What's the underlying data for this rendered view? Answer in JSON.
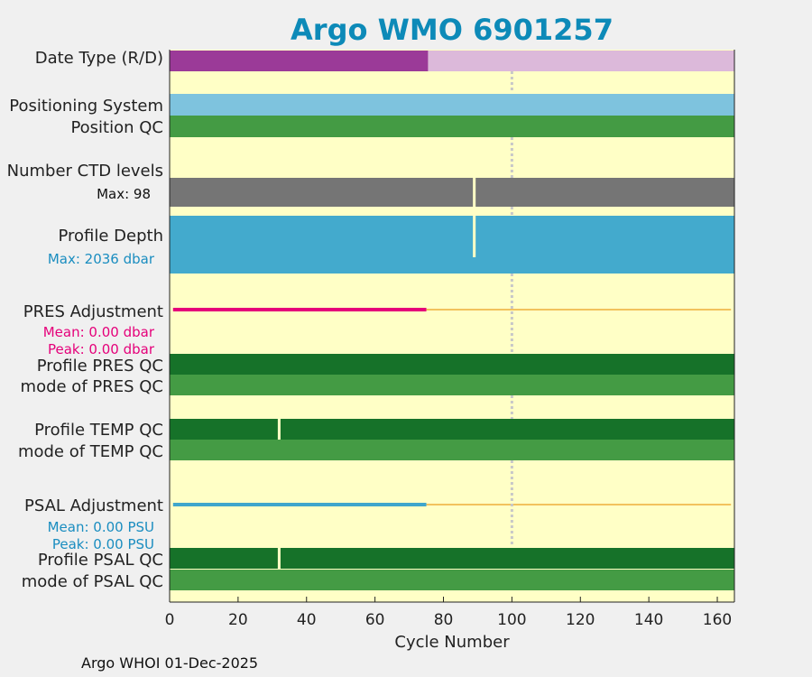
{
  "chart_data": {
    "type": "timeline",
    "title": "Argo WMO 6901257",
    "xlabel": "Cycle Number",
    "xlim": [
      0,
      165
    ],
    "xticks": [
      0,
      20,
      40,
      60,
      80,
      100,
      120,
      140,
      160
    ],
    "reference_cycle": 100,
    "panels": [
      {
        "id": "date_type",
        "labels": [
          "Date Type (R/D)"
        ],
        "segments": [
          {
            "from": 0,
            "to": 75.5,
            "color": "#9b3a98"
          },
          {
            "from": 75.5,
            "to": 165,
            "color": "#dcb9da"
          }
        ]
      },
      {
        "id": "positioning_system",
        "labels": [
          "Positioning System"
        ],
        "segments": [
          {
            "from": 0,
            "to": 165,
            "color": "#7ec3de"
          }
        ]
      },
      {
        "id": "position_qc",
        "labels": [
          "Position QC"
        ],
        "segments": [
          {
            "from": 0,
            "to": 165,
            "color": "#449b44"
          }
        ]
      },
      {
        "id": "ctd_levels",
        "labels": [
          "Number CTD levels"
        ],
        "annotation": {
          "text": "Max: 98",
          "color": "#111111"
        },
        "fill_color": "#757575",
        "max": 98,
        "gap_cycles": [
          89
        ]
      },
      {
        "id": "profile_depth",
        "labels": [
          "Profile Depth"
        ],
        "annotation": {
          "text": "Max: 2036 dbar",
          "color": "#1a8dc0"
        },
        "fill_color": "#43aacd",
        "max": 2036,
        "gap_cycles": [
          89
        ]
      },
      {
        "id": "pres_adjustment",
        "labels": [
          "PRES Adjustment"
        ],
        "annotation_lines": [
          "Mean: 0.00 dbar",
          "Peak: 0.00 dbar"
        ],
        "annotation_color": "#e5007a",
        "adjusted_until": 75,
        "adjusted_color": "#e5007a",
        "rest_color": "#f2c25d"
      },
      {
        "id": "profile_pres_qc",
        "labels": [
          "Profile PRES QC"
        ],
        "segments": [
          {
            "from": 0,
            "to": 165,
            "color": "#167229"
          }
        ]
      },
      {
        "id": "mode_pres_qc",
        "labels": [
          "mode of PRES QC"
        ],
        "segments": [
          {
            "from": 0,
            "to": 165,
            "color": "#449b44"
          }
        ]
      },
      {
        "id": "profile_temp_qc",
        "labels": [
          "Profile TEMP QC"
        ],
        "segments": [
          {
            "from": 0,
            "to": 165,
            "color": "#167229"
          }
        ],
        "gap_cycles": [
          32
        ]
      },
      {
        "id": "mode_temp_qc",
        "labels": [
          "mode of TEMP QC"
        ],
        "segments": [
          {
            "from": 0,
            "to": 165,
            "color": "#449b44"
          }
        ]
      },
      {
        "id": "psal_adjustment",
        "labels": [
          "PSAL Adjustment"
        ],
        "annotation_lines": [
          "Mean: 0.00 PSU",
          "Peak: 0.00 PSU"
        ],
        "annotation_color": "#1a8dc0",
        "adjusted_until": 75,
        "adjusted_color": "#3fa6cc",
        "rest_color": "#f2c25d"
      },
      {
        "id": "profile_psal_qc",
        "labels": [
          "Profile PSAL QC"
        ],
        "segments": [
          {
            "from": 0,
            "to": 165,
            "color": "#167229"
          }
        ],
        "gap_cycles": [
          32
        ]
      },
      {
        "id": "mode_psal_qc",
        "labels": [
          "mode of PSAL QC"
        ],
        "segments": [
          {
            "from": 0,
            "to": 165,
            "color": "#449b44"
          }
        ]
      }
    ]
  },
  "colors": {
    "title": "#0d8ab8",
    "background": "#ffffc6",
    "figure": "#f0f0f0",
    "reference_line": "#c8c8c8"
  },
  "footer": "Argo WHOI 01-Dec-2025"
}
